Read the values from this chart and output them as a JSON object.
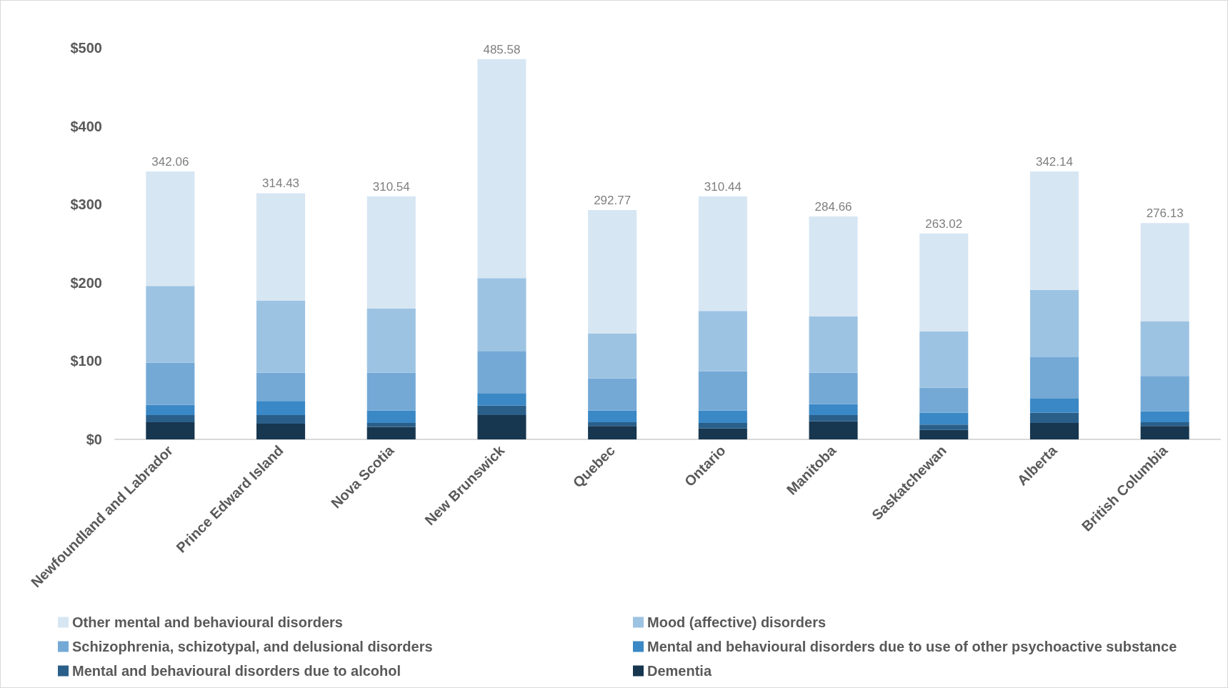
{
  "chart_data": {
    "type": "bar",
    "stacked": true,
    "categories": [
      "Newfoundland and Labrador",
      "Prince Edward Island",
      "Nova Scotia",
      "New Brunswick",
      "Quebec",
      "Ontario",
      "Manitoba",
      "Saskatchewan",
      "Alberta",
      "British Columbia"
    ],
    "series": [
      {
        "name": "Dementia",
        "color": "#17364f",
        "values": [
          22,
          20,
          16,
          31,
          17,
          14,
          23,
          12,
          21,
          17
        ]
      },
      {
        "name": "Mental and behavioural disorders due to alcohol",
        "color": "#2a5f8a",
        "values": [
          9,
          11,
          5,
          12,
          5,
          7,
          8,
          7,
          13,
          5
        ]
      },
      {
        "name": "Mental and behavioural disorders due to use of other psychoactive substance",
        "color": "#3a88c5",
        "values": [
          13,
          18,
          16,
          16,
          15,
          16,
          14,
          15,
          18,
          14
        ]
      },
      {
        "name": "Schizophrenia, schizotypal, and delusional disorders",
        "color": "#74a9d6",
        "values": [
          54,
          36,
          48,
          54,
          41,
          50,
          40,
          32,
          53,
          45
        ]
      },
      {
        "name": "Mood (affective) disorders",
        "color": "#9dc3e3",
        "values": [
          98,
          92,
          82,
          93,
          57,
          77,
          72,
          72,
          86,
          70
        ]
      },
      {
        "name": "Other mental and behavioural disorders",
        "color": "#d7e6f3",
        "values": [
          146.06,
          137.43,
          143.54,
          279.58,
          157.77,
          146.44,
          127.66,
          125.02,
          151.14,
          125.13
        ]
      }
    ],
    "totals": [
      "342.06",
      "314.43",
      "310.54",
      "485.58",
      "292.77",
      "310.44",
      "284.66",
      "263.02",
      "342.14",
      "276.13"
    ],
    "ylim": [
      0,
      500
    ],
    "yticks": [
      {
        "value": 0,
        "label": "$0"
      },
      {
        "value": 100,
        "label": "$100"
      },
      {
        "value": 200,
        "label": "$200"
      },
      {
        "value": 300,
        "label": "$300"
      },
      {
        "value": 400,
        "label": "$400"
      },
      {
        "value": 500,
        "label": "$500"
      }
    ],
    "grid": false,
    "legend": "bottom"
  }
}
